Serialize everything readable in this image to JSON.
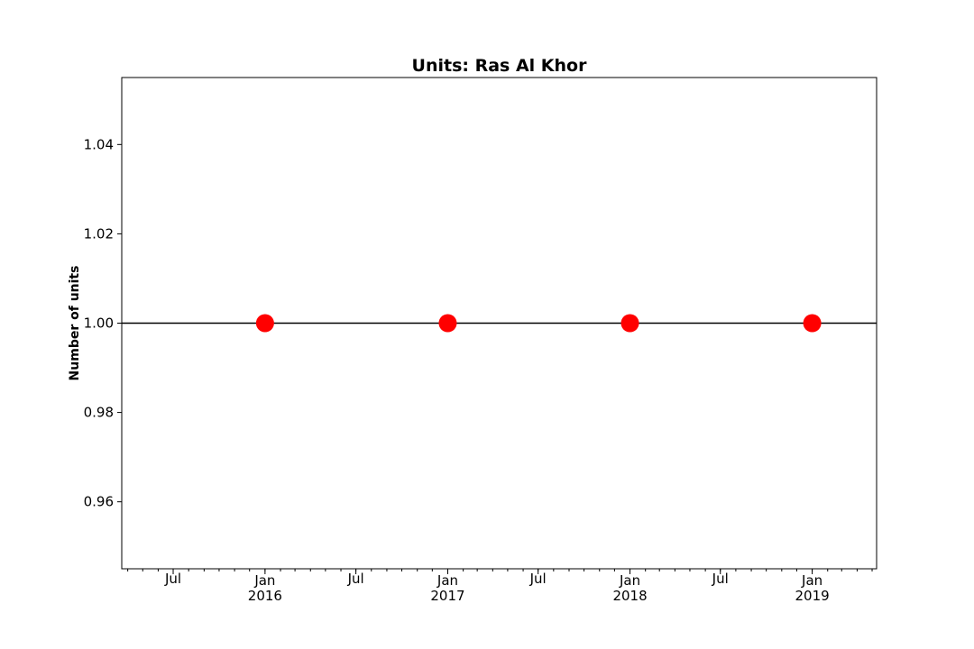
{
  "chart_data": {
    "type": "line",
    "title": "Units: Ras Al Khor",
    "xlabel": "",
    "ylabel": "Number of units",
    "xlim": [
      "2015-03-20",
      "2019-05-10"
    ],
    "ylim": [
      0.945,
      1.055
    ],
    "grid": false,
    "yticks": [
      0.96,
      0.98,
      1.0,
      1.02,
      1.04
    ],
    "ytick_labels": [
      "0.96",
      "0.98",
      "1.00",
      "1.02",
      "1.04"
    ],
    "xticks": [
      {
        "date": "2015-07-01",
        "label": "Jul",
        "sublabel": ""
      },
      {
        "date": "2016-01-01",
        "label": "Jan",
        "sublabel": "2016"
      },
      {
        "date": "2016-07-01",
        "label": "Jul",
        "sublabel": ""
      },
      {
        "date": "2017-01-01",
        "label": "Jan",
        "sublabel": "2017"
      },
      {
        "date": "2017-07-01",
        "label": "Jul",
        "sublabel": ""
      },
      {
        "date": "2018-01-01",
        "label": "Jan",
        "sublabel": "2018"
      },
      {
        "date": "2018-07-01",
        "label": "Jul",
        "sublabel": ""
      },
      {
        "date": "2019-01-01",
        "label": "Jan",
        "sublabel": "2019"
      }
    ],
    "series": [
      {
        "x": [
          "2016-01-01",
          "2017-01-01",
          "2018-01-01",
          "2019-01-01"
        ],
        "values": [
          1,
          1,
          1,
          1
        ],
        "line_color": "#000000",
        "marker_color": "#ff0000"
      }
    ]
  }
}
